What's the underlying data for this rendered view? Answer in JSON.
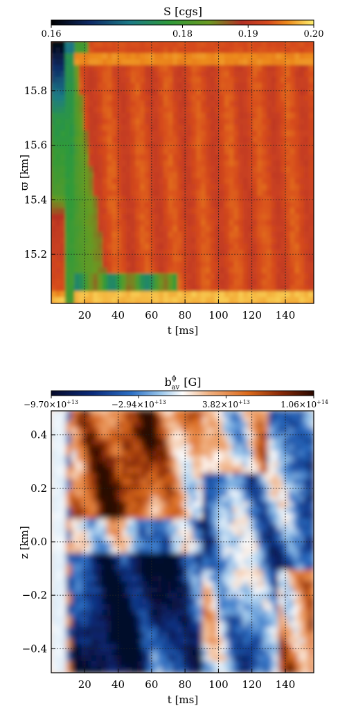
{
  "chart_data": [
    {
      "type": "heatmap",
      "title": "S [cgs]",
      "xlabel": "t [ms]",
      "ylabel": "ϖ [km]",
      "xlim": [
        0,
        157
      ],
      "ylim": [
        15.02,
        15.98
      ],
      "xticks": [
        20,
        40,
        60,
        80,
        100,
        120,
        140
      ],
      "yticks": [
        15.2,
        15.4,
        15.6,
        15.8
      ],
      "colorbar": {
        "min": 0.16,
        "max": 0.2,
        "ticks": [
          0.16,
          0.18,
          0.19,
          0.2
        ],
        "tick_labels": [
          "0.16",
          "0.18",
          "0.19",
          "0.20"
        ],
        "colormap": [
          {
            "v": 0.16,
            "color": "#000000"
          },
          {
            "v": 0.166,
            "color": "#0e2a66"
          },
          {
            "v": 0.172,
            "color": "#1b7a86"
          },
          {
            "v": 0.178,
            "color": "#2f9a3a"
          },
          {
            "v": 0.184,
            "color": "#6a9a22"
          },
          {
            "v": 0.189,
            "color": "#b23024"
          },
          {
            "v": 0.193,
            "color": "#d64a1e"
          },
          {
            "v": 0.196,
            "color": "#ec8a1c"
          },
          {
            "v": 0.2,
            "color": "#fff070"
          }
        ]
      },
      "grid": true,
      "description_values": {
        "initial_state_t0_to_10ms": 0.192,
        "bulk_value_after_40ms": 0.193,
        "outer_edge_value": 0.194,
        "green_band_value": 0.18
      }
    },
    {
      "type": "heatmap",
      "title": "b^φ_av [G]",
      "xlabel": "t [ms]",
      "ylabel": "z [km]",
      "xlim": [
        0,
        157
      ],
      "ylim": [
        -0.49,
        0.49
      ],
      "xticks": [
        20,
        40,
        60,
        80,
        100,
        120,
        140
      ],
      "yticks": [
        -0.4,
        -0.2,
        0.0,
        0.2,
        0.4
      ],
      "colorbar": {
        "min": -97000000000000.0,
        "max": 106000000000000.0,
        "tick_labels": [
          "−9.70×10",
          "−2.94×10",
          "3.82×10",
          "1.06×10"
        ],
        "tick_exponents": [
          "+13",
          "+13",
          "+13",
          "+14"
        ],
        "ticks": [
          -97000000000000.0,
          -29400000000000.0,
          38200000000000.0,
          106000000000000.0
        ],
        "colormap": [
          {
            "v": -97000000000000.0,
            "color": "#060a2a"
          },
          {
            "v": -65000000000000.0,
            "color": "#0a2a7a"
          },
          {
            "v": -35000000000000.0,
            "color": "#2c6fc4"
          },
          {
            "v": -12000000000000.0,
            "color": "#9cc8ec"
          },
          {
            "v": 4500000000000.0,
            "color": "#ffffff"
          },
          {
            "v": 25000000000000.0,
            "color": "#f0b080"
          },
          {
            "v": 55000000000000.0,
            "color": "#dc6a1c"
          },
          {
            "v": 80000000000000.0,
            "color": "#8a2a08"
          },
          {
            "v": 106000000000000.0,
            "color": "#2a0800"
          }
        ]
      },
      "grid": true
    }
  ]
}
